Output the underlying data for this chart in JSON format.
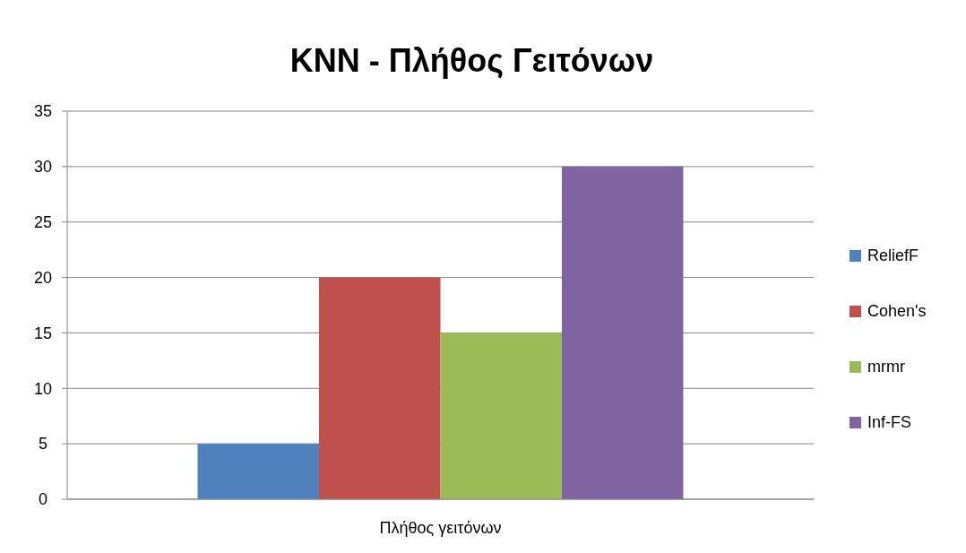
{
  "chart_data": {
    "type": "bar",
    "title": "KNN - Πλήθος Γειτόνων",
    "categories": [
      "Πλήθος γειτόνων"
    ],
    "series": [
      {
        "name": "ReliefF",
        "color": "#4f81bd",
        "values": [
          5
        ]
      },
      {
        "name": "Cohen's",
        "color": "#c0504d",
        "values": [
          20
        ]
      },
      {
        "name": "mrmr",
        "color": "#9bbb59",
        "values": [
          15
        ]
      },
      {
        "name": "Inf-FS",
        "color": "#8064a2",
        "values": [
          30
        ]
      }
    ],
    "ylim": [
      0,
      35
    ],
    "yticks": [
      0,
      5,
      10,
      15,
      20,
      25,
      30,
      35
    ],
    "grid": "y",
    "legend": "right"
  }
}
